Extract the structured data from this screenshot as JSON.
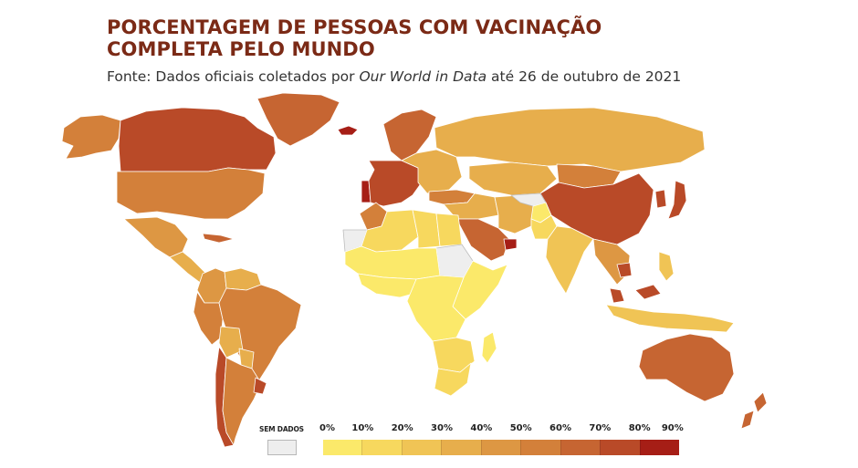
{
  "header": {
    "title_line1": "PORCENTAGEM DE PESSOAS COM VACINAÇÃO",
    "title_line2": "COMPLETA PELO MUNDO",
    "source_prefix": "Fonte: Dados oficiais coletados por ",
    "source_italic": "Our World in Data",
    "source_suffix": " até 26 de outubro de 2021"
  },
  "legend": {
    "no_data_label": "SEM DADOS",
    "no_data_color": "#eeeeee",
    "tick_labels": [
      "0%",
      "10%",
      "20%",
      "30%",
      "40%",
      "50%",
      "60%",
      "70%",
      "80%",
      "90%"
    ],
    "scale_colors": [
      "#fbe96a",
      "#f7d85e",
      "#f0c455",
      "#e7ae4c",
      "#dd9743",
      "#d3803a",
      "#c66532",
      "#b94a28",
      "#a61e16"
    ]
  },
  "map": {
    "regions": [
      {
        "name": "Alaska",
        "bin": 5
      },
      {
        "name": "Canada",
        "bin": 7
      },
      {
        "name": "Greenland",
        "bin": 6
      },
      {
        "name": "Iceland",
        "bin": 8
      },
      {
        "name": "United States",
        "bin": 5
      },
      {
        "name": "Mexico",
        "bin": 4
      },
      {
        "name": "Cuba",
        "bin": 6
      },
      {
        "name": "Central America",
        "bin": 3
      },
      {
        "name": "Colombia",
        "bin": 4
      },
      {
        "name": "Venezuela",
        "bin": 3
      },
      {
        "name": "Peru",
        "bin": 5
      },
      {
        "name": "Brazil",
        "bin": 5
      },
      {
        "name": "Bolivia",
        "bin": 3
      },
      {
        "name": "Paraguay",
        "bin": 3
      },
      {
        "name": "Chile",
        "bin": 7
      },
      {
        "name": "Argentina",
        "bin": 5
      },
      {
        "name": "Uruguay",
        "bin": 7
      },
      {
        "name": "Scandinavia",
        "bin": 6
      },
      {
        "name": "Western Europe",
        "bin": 7
      },
      {
        "name": "Portugal",
        "bin": 8
      },
      {
        "name": "Eastern Europe",
        "bin": 3
      },
      {
        "name": "Russia",
        "bin": 3
      },
      {
        "name": "Kazakhstan",
        "bin": 3
      },
      {
        "name": "Mongolia",
        "bin": 5
      },
      {
        "name": "China",
        "bin": 7
      },
      {
        "name": "Japan",
        "bin": 7
      },
      {
        "name": "Korea",
        "bin": 7
      },
      {
        "name": "Turkey",
        "bin": 5
      },
      {
        "name": "Middle East",
        "bin": 3
      },
      {
        "name": "Saudi Arabia",
        "bin": 6
      },
      {
        "name": "United Arab Emirates",
        "bin": 8
      },
      {
        "name": "Iran",
        "bin": 3
      },
      {
        "name": "Turkmenistan",
        "bin": -1
      },
      {
        "name": "Afghanistan",
        "bin": 0
      },
      {
        "name": "Pakistan",
        "bin": 1
      },
      {
        "name": "India",
        "bin": 2
      },
      {
        "name": "Southeast Asia",
        "bin": 4
      },
      {
        "name": "Cambodia",
        "bin": 7
      },
      {
        "name": "Malaysia",
        "bin": 7
      },
      {
        "name": "Indonesia",
        "bin": 2
      },
      {
        "name": "Philippines",
        "bin": 2
      },
      {
        "name": "Morocco",
        "bin": 5
      },
      {
        "name": "Algeria",
        "bin": 1
      },
      {
        "name": "Western Sahara",
        "bin": -1
      },
      {
        "name": "Libya",
        "bin": 1
      },
      {
        "name": "Egypt",
        "bin": 1
      },
      {
        "name": "Sudan",
        "bin": -1
      },
      {
        "name": "Sahel",
        "bin": 0
      },
      {
        "name": "West Africa",
        "bin": 0
      },
      {
        "name": "Central Africa",
        "bin": 0
      },
      {
        "name": "East Africa",
        "bin": 0
      },
      {
        "name": "Southern Africa",
        "bin": 1
      },
      {
        "name": "South Africa",
        "bin": 1
      },
      {
        "name": "Madagascar",
        "bin": 0
      },
      {
        "name": "Australia",
        "bin": 6
      },
      {
        "name": "New Zealand",
        "bin": 6
      }
    ]
  }
}
